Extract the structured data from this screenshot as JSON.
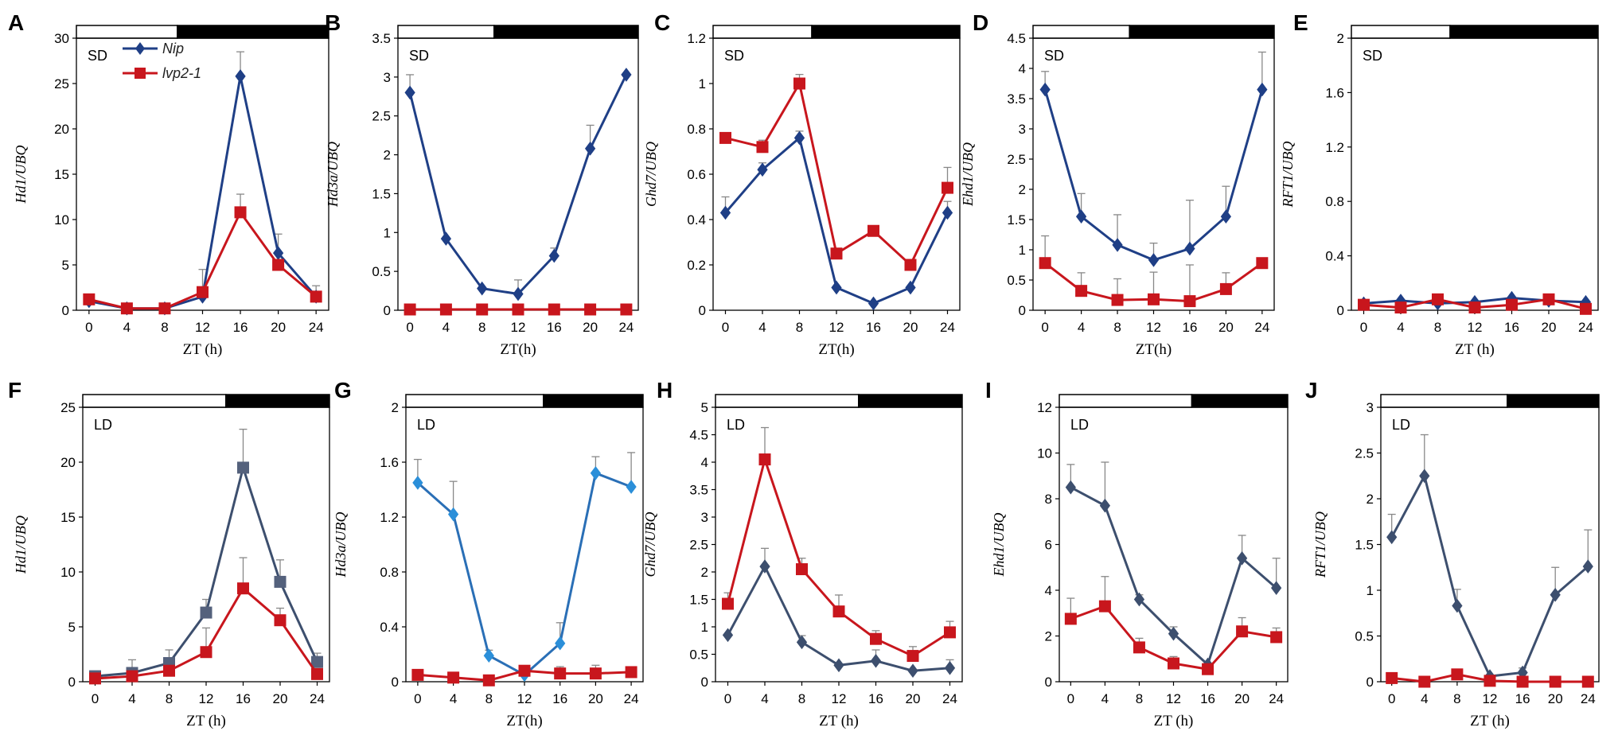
{
  "colors": {
    "nip_sd": "#1f3f86",
    "nip_ld": "#3d4f6e",
    "nip_ld_light": "#2a6fb6",
    "lvp": "#c8161d",
    "axis": "#000000"
  },
  "legend": {
    "series_a": "Nip",
    "series_b": "lvp2-1"
  },
  "chart_data": [
    {
      "panel": "A",
      "type": "line",
      "condition": "SD",
      "ylabel": "Hd1/UBQ",
      "xlabel": "ZT (h)",
      "light_fraction": 0.4,
      "ylim": [
        0,
        30
      ],
      "yticks": [
        "0",
        "5",
        "10",
        "15",
        "20",
        "25",
        "30"
      ],
      "x": [
        0,
        4,
        8,
        12,
        16,
        20,
        24
      ],
      "xticks": [
        "0",
        "4",
        "8",
        "12",
        "16",
        "20",
        "24"
      ],
      "series": [
        {
          "name": "Nip",
          "marker": "diamond",
          "values": [
            1.0,
            0.2,
            0.2,
            1.5,
            25.8,
            6.3,
            1.5
          ],
          "errors": [
            0.3,
            0.1,
            0.1,
            3.0,
            2.7,
            2.1,
            1.2
          ]
        },
        {
          "name": "lvp2-1",
          "marker": "square",
          "values": [
            1.2,
            0.2,
            0.2,
            2.0,
            10.8,
            5.0,
            1.5
          ],
          "errors": [
            0.2,
            0.1,
            0.1,
            0.5,
            2.0,
            0.5,
            0.4
          ]
        }
      ]
    },
    {
      "panel": "B",
      "type": "line",
      "condition": "SD",
      "ylabel": "Hd3a/UBQ",
      "xlabel": "ZT(h)",
      "light_fraction": 0.4,
      "ylim": [
        0,
        3.5
      ],
      "yticks": [
        "0",
        "0.5",
        "1",
        "1.5",
        "2",
        "2.5",
        "3",
        "3.5"
      ],
      "x": [
        0,
        4,
        8,
        12,
        16,
        20,
        24
      ],
      "xticks": [
        "0",
        "4",
        "8",
        "12",
        "16",
        "20",
        "24"
      ],
      "series": [
        {
          "name": "Nip",
          "marker": "diamond",
          "values": [
            2.8,
            0.92,
            0.28,
            0.21,
            0.7,
            2.08,
            3.03
          ],
          "errors": [
            0.23,
            0,
            0,
            0.18,
            0.1,
            0.3,
            0
          ]
        },
        {
          "name": "lvp2-1",
          "marker": "square",
          "values": [
            0.01,
            0.01,
            0.01,
            0.01,
            0.01,
            0.01,
            0.01
          ],
          "errors": [
            0,
            0,
            0,
            0,
            0,
            0,
            0
          ]
        }
      ]
    },
    {
      "panel": "C",
      "type": "line",
      "condition": "SD",
      "ylabel": "Ghd7/UBQ",
      "xlabel": "ZT(h)",
      "light_fraction": 0.4,
      "ylim": [
        0,
        1.2
      ],
      "yticks": [
        "0",
        "0.2",
        "0.4",
        "0.6",
        "0.8",
        "1",
        "1.2"
      ],
      "x": [
        0,
        4,
        8,
        12,
        16,
        20,
        24
      ],
      "xticks": [
        "0",
        "4",
        "8",
        "12",
        "16",
        "20",
        "24"
      ],
      "series": [
        {
          "name": "Nip",
          "marker": "diamond",
          "values": [
            0.43,
            0.62,
            0.76,
            0.1,
            0.03,
            0.1,
            0.43
          ],
          "errors": [
            0.07,
            0.03,
            0.03,
            0,
            0,
            0,
            0.05
          ]
        },
        {
          "name": "lvp2-1",
          "marker": "square",
          "values": [
            0.76,
            0.72,
            1.0,
            0.25,
            0.35,
            0.2,
            0.54
          ],
          "errors": [
            0,
            0.03,
            0.04,
            0,
            0,
            0,
            0.09
          ]
        }
      ]
    },
    {
      "panel": "D",
      "type": "line",
      "condition": "SD",
      "ylabel": "Ehd1/UBQ",
      "xlabel": "ZT(h)",
      "light_fraction": 0.4,
      "ylim": [
        0,
        4.5
      ],
      "yticks": [
        "0",
        "0.5",
        "1",
        "1.5",
        "2",
        "2.5",
        "3",
        "3.5",
        "4",
        "4.5"
      ],
      "x": [
        0,
        4,
        8,
        12,
        16,
        20,
        24
      ],
      "xticks": [
        "0",
        "4",
        "8",
        "12",
        "16",
        "20",
        "24"
      ],
      "series": [
        {
          "name": "Nip",
          "marker": "diamond",
          "values": [
            3.65,
            1.55,
            1.08,
            0.83,
            1.02,
            1.55,
            3.65
          ],
          "errors": [
            0.3,
            0.38,
            0.5,
            0.28,
            0.8,
            0.5,
            0.62
          ]
        },
        {
          "name": "lvp2-1",
          "marker": "square",
          "values": [
            0.78,
            0.32,
            0.17,
            0.18,
            0.15,
            0.35,
            0.78
          ],
          "errors": [
            0.45,
            0.3,
            0.35,
            0.45,
            0.6,
            0.27,
            0
          ]
        }
      ]
    },
    {
      "panel": "E",
      "type": "line",
      "condition": "SD",
      "ylabel": "RFT1/UBQ",
      "xlabel": "ZT (h)",
      "light_fraction": 0.4,
      "ylim": [
        0,
        2
      ],
      "yticks": [
        "0",
        "0.4",
        "0.8",
        "1.2",
        "1.6",
        "2"
      ],
      "x": [
        0,
        4,
        8,
        12,
        16,
        20,
        24
      ],
      "xticks": [
        "0",
        "4",
        "8",
        "12",
        "16",
        "20",
        "24"
      ],
      "series": [
        {
          "name": "Nip",
          "marker": "diamond",
          "values": [
            0.05,
            0.07,
            0.05,
            0.06,
            0.09,
            0.07,
            0.06
          ],
          "errors": [
            0,
            0,
            0,
            0,
            0,
            0,
            0
          ]
        },
        {
          "name": "lvp2-1",
          "marker": "square",
          "values": [
            0.04,
            0.02,
            0.08,
            0.02,
            0.04,
            0.08,
            0.01
          ],
          "errors": [
            0,
            0,
            0,
            0,
            0,
            0,
            0
          ]
        }
      ]
    },
    {
      "panel": "F",
      "type": "line",
      "condition": "LD",
      "ylabel": "Hd1/UBQ",
      "xlabel": "ZT (h)",
      "light_fraction": 0.58,
      "ylim": [
        0,
        25
      ],
      "yticks": [
        "0",
        "5",
        "10",
        "15",
        "20",
        "25"
      ],
      "x": [
        0,
        4,
        8,
        12,
        16,
        20,
        24
      ],
      "xticks": [
        "0",
        "4",
        "8",
        "12",
        "16",
        "20",
        "24"
      ],
      "series": [
        {
          "name": "Nip",
          "marker": "square",
          "values": [
            0.5,
            0.8,
            1.7,
            6.3,
            19.5,
            9.1,
            1.8
          ],
          "errors": [
            0.2,
            1.2,
            1.2,
            1.2,
            3.5,
            2.0,
            0.8
          ]
        },
        {
          "name": "lvp2-1",
          "marker": "square",
          "values": [
            0.3,
            0.5,
            1.0,
            2.7,
            8.5,
            5.6,
            0.7
          ],
          "errors": [
            0,
            0,
            0,
            2.2,
            2.8,
            1.1,
            0
          ]
        }
      ]
    },
    {
      "panel": "G",
      "type": "line",
      "condition": "LD",
      "ylabel": "Hd3a/UBQ",
      "xlabel": "ZT(h)",
      "light_fraction": 0.58,
      "ylim": [
        0,
        2
      ],
      "yticks": [
        "0",
        "0.4",
        "0.8",
        "1.2",
        "1.6",
        "2"
      ],
      "x": [
        0,
        4,
        8,
        12,
        16,
        20,
        24
      ],
      "xticks": [
        "0",
        "4",
        "8",
        "12",
        "16",
        "20",
        "24"
      ],
      "series": [
        {
          "name": "Nip",
          "marker": "diamond",
          "values": [
            1.45,
            1.22,
            0.19,
            0.05,
            0.28,
            1.52,
            1.42
          ],
          "errors": [
            0.17,
            0.24,
            0.04,
            0,
            0.15,
            0.12,
            0.25
          ]
        },
        {
          "name": "lvp2-1",
          "marker": "square",
          "values": [
            0.05,
            0.03,
            0.01,
            0.08,
            0.06,
            0.06,
            0.07
          ],
          "errors": [
            0,
            0,
            0,
            0.03,
            0.05,
            0.06,
            0
          ]
        }
      ]
    },
    {
      "panel": "H",
      "type": "line",
      "condition": "LD",
      "ylabel": "Ghd7/UBQ",
      "xlabel": "ZT (h)",
      "light_fraction": 0.58,
      "ylim": [
        0,
        5
      ],
      "yticks": [
        "0",
        "0.5",
        "1",
        "1.5",
        "2",
        "2.5",
        "3",
        "3.5",
        "4",
        "4.5",
        "5"
      ],
      "x": [
        0,
        4,
        8,
        12,
        16,
        20,
        24
      ],
      "xticks": [
        "0",
        "4",
        "8",
        "12",
        "16",
        "20",
        "24"
      ],
      "series": [
        {
          "name": "Nip",
          "marker": "diamond",
          "values": [
            0.85,
            2.1,
            0.72,
            0.3,
            0.38,
            0.2,
            0.25
          ],
          "errors": [
            0,
            0.33,
            0.12,
            0,
            0.2,
            0,
            0.15
          ]
        },
        {
          "name": "lvp2-1",
          "marker": "square",
          "values": [
            1.42,
            4.05,
            2.05,
            1.28,
            0.78,
            0.47,
            0.9
          ],
          "errors": [
            0.2,
            0.58,
            0.2,
            0.3,
            0.15,
            0.17,
            0.2
          ]
        }
      ]
    },
    {
      "panel": "I",
      "type": "line",
      "condition": "LD",
      "ylabel": "Ehd1/UBQ",
      "xlabel": "ZT (h)",
      "light_fraction": 0.58,
      "ylim": [
        0,
        12
      ],
      "yticks": [
        "0",
        "2",
        "4",
        "6",
        "8",
        "10",
        "12"
      ],
      "x": [
        0,
        4,
        8,
        12,
        16,
        20,
        24
      ],
      "xticks": [
        "0",
        "4",
        "8",
        "12",
        "16",
        "20",
        "24"
      ],
      "series": [
        {
          "name": "Nip",
          "marker": "diamond",
          "values": [
            8.5,
            7.7,
            3.6,
            2.1,
            0.75,
            5.4,
            4.1
          ],
          "errors": [
            1.0,
            1.9,
            0.2,
            0.3,
            0,
            1.0,
            1.3
          ]
        },
        {
          "name": "lvp2-1",
          "marker": "square",
          "values": [
            2.75,
            3.3,
            1.5,
            0.8,
            0.55,
            2.2,
            1.95
          ],
          "errors": [
            0.9,
            1.3,
            0.4,
            0.3,
            0,
            0.6,
            0.4
          ]
        }
      ]
    },
    {
      "panel": "J",
      "type": "line",
      "condition": "LD",
      "ylabel": "RFT1/UBQ",
      "xlabel": "ZT (h)",
      "light_fraction": 0.58,
      "ylim": [
        0,
        3
      ],
      "yticks": [
        "0",
        "0.5",
        "1",
        "1.5",
        "2",
        "2.5",
        "3"
      ],
      "x": [
        0,
        4,
        8,
        12,
        16,
        20,
        24
      ],
      "xticks": [
        "0",
        "4",
        "8",
        "12",
        "16",
        "20",
        "24"
      ],
      "series": [
        {
          "name": "Nip",
          "marker": "diamond",
          "values": [
            1.58,
            2.25,
            0.83,
            0.06,
            0.1,
            0.95,
            1.26
          ],
          "errors": [
            0.25,
            0.45,
            0.18,
            0,
            0.05,
            0.3,
            0.4
          ]
        },
        {
          "name": "lvp2-1",
          "marker": "square",
          "values": [
            0.04,
            0.0,
            0.08,
            0.01,
            0.0,
            0.0,
            0.0
          ],
          "errors": [
            0,
            0,
            0,
            0,
            0,
            0,
            0
          ]
        }
      ]
    }
  ]
}
